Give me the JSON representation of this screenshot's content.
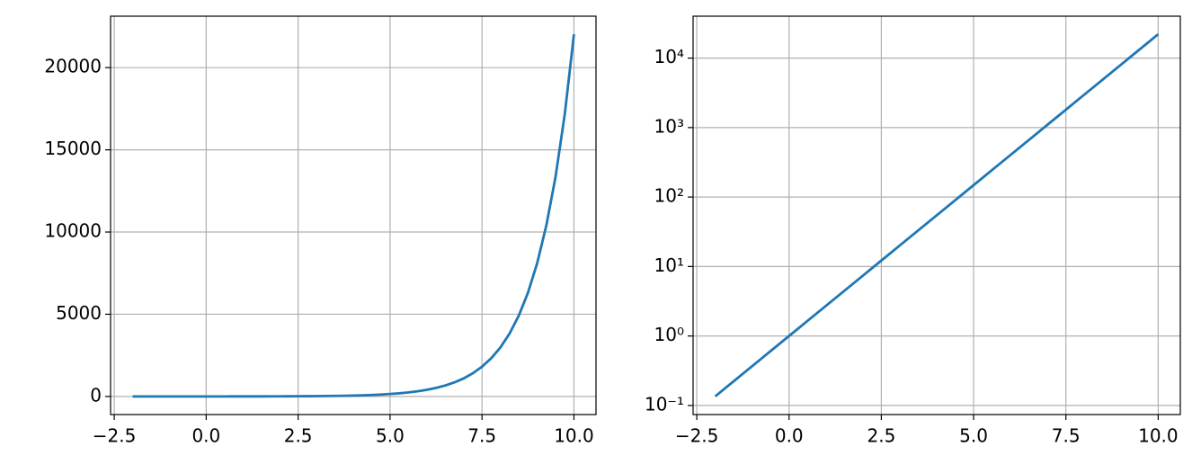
{
  "chart_data": [
    {
      "type": "line",
      "yscale": "linear",
      "grid": true,
      "color": "#1f77b4",
      "x": [
        -2,
        -1.75,
        -1.5,
        -1.25,
        -1,
        -0.75,
        -0.5,
        -0.25,
        0,
        0.25,
        0.5,
        0.75,
        1,
        1.25,
        1.5,
        1.75,
        2,
        2.25,
        2.5,
        2.75,
        3,
        3.25,
        3.5,
        3.75,
        4,
        4.25,
        4.5,
        4.75,
        5,
        5.25,
        5.5,
        5.75,
        6,
        6.25,
        6.5,
        6.75,
        7,
        7.25,
        7.5,
        7.75,
        8,
        8.25,
        8.5,
        8.75,
        9,
        9.25,
        9.5,
        9.75,
        10
      ],
      "values": [
        0.135,
        0.174,
        0.223,
        0.287,
        0.368,
        0.472,
        0.607,
        0.779,
        1,
        1.284,
        1.649,
        2.117,
        2.718,
        3.49,
        4.482,
        5.755,
        7.389,
        9.488,
        12.18,
        15.64,
        20.09,
        25.79,
        33.12,
        42.52,
        54.6,
        70.11,
        90.02,
        115.6,
        148.4,
        190.6,
        244.7,
        314.2,
        403.4,
        518,
        665.1,
        854.1,
        1096.6,
        1408.1,
        1808,
        2321.6,
        2981,
        3827.6,
        4914.8,
        6310.7,
        8103.1,
        10404.6,
        13359.7,
        17154.2,
        22026.5
      ],
      "xlim": [
        -2.6,
        10.6
      ],
      "ylim": [
        -1101,
        23128
      ],
      "xticks": [
        {
          "value": -2.5,
          "label": "−2.5"
        },
        {
          "value": 0,
          "label": "0.0"
        },
        2.5,
        {
          "value": 5,
          "label": "5.0"
        },
        7.5,
        {
          "value": 10,
          "label": "10.0"
        }
      ],
      "yticks": [
        0,
        5000,
        10000,
        15000,
        20000
      ]
    },
    {
      "type": "line",
      "yscale": "log",
      "grid": true,
      "color": "#1f77b4",
      "x": [
        -2,
        -1.75,
        -1.5,
        -1.25,
        -1,
        -0.75,
        -0.5,
        -0.25,
        0,
        0.25,
        0.5,
        0.75,
        1,
        1.25,
        1.5,
        1.75,
        2,
        2.25,
        2.5,
        2.75,
        3,
        3.25,
        3.5,
        3.75,
        4,
        4.25,
        4.5,
        4.75,
        5,
        5.25,
        5.5,
        5.75,
        6,
        6.25,
        6.5,
        6.75,
        7,
        7.25,
        7.5,
        7.75,
        8,
        8.25,
        8.5,
        8.75,
        9,
        9.25,
        9.5,
        9.75,
        10
      ],
      "values": [
        0.135,
        0.174,
        0.223,
        0.287,
        0.368,
        0.472,
        0.607,
        0.779,
        1,
        1.284,
        1.649,
        2.117,
        2.718,
        3.49,
        4.482,
        5.755,
        7.389,
        9.488,
        12.18,
        15.64,
        20.09,
        25.79,
        33.12,
        42.52,
        54.6,
        70.11,
        90.02,
        115.6,
        148.4,
        190.6,
        244.7,
        314.2,
        403.4,
        518,
        665.1,
        854.1,
        1096.6,
        1408.1,
        1808,
        2321.6,
        2981,
        3827.6,
        4914.8,
        6310.7,
        8103.1,
        10404.6,
        13359.7,
        17154.2,
        22026.5
      ],
      "xlim": [
        -2.6,
        10.6
      ],
      "ylim": [
        0.074,
        40100
      ],
      "xticks": [
        {
          "value": -2.5,
          "label": "−2.5"
        },
        {
          "value": 0,
          "label": "0.0"
        },
        2.5,
        {
          "value": 5,
          "label": "5.0"
        },
        7.5,
        {
          "value": 10,
          "label": "10.0"
        }
      ],
      "yticks": [
        {
          "value": 0.1,
          "label": "10⁻¹"
        },
        {
          "value": 1,
          "label": "10⁰"
        },
        {
          "value": 10,
          "label": "10¹"
        },
        {
          "value": 100,
          "label": "10²"
        },
        {
          "value": 1000,
          "label": "10³"
        },
        {
          "value": 10000,
          "label": "10⁴"
        }
      ]
    }
  ]
}
